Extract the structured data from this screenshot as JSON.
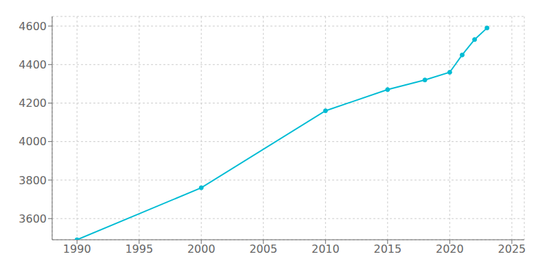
{
  "chart_data": {
    "type": "line",
    "x": [
      1990,
      2000,
      2010,
      2015,
      2018,
      2020,
      2021,
      2022,
      2023
    ],
    "values": [
      3490,
      3760,
      4160,
      4270,
      4320,
      4360,
      4450,
      4530,
      4590
    ],
    "color": "#00bcd4",
    "marker": "circle",
    "xlim": [
      1988,
      2026
    ],
    "ylim": [
      3490,
      4650
    ],
    "xticks": [
      1990,
      1995,
      2000,
      2005,
      2010,
      2015,
      2020,
      2025
    ],
    "yticks": [
      3600,
      3800,
      4000,
      4200,
      4400,
      4600
    ],
    "grid": true
  }
}
